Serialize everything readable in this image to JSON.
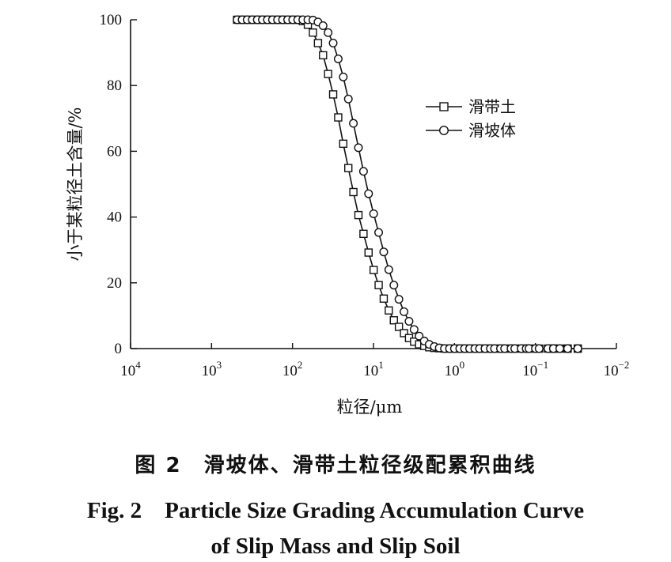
{
  "chart_data": {
    "type": "line",
    "x_scale": "log",
    "x_reversed": true,
    "xlabel": "粒径/μm",
    "ylabel": "小于某粒径土含量/%",
    "xlim": [
      10000,
      0.01
    ],
    "ylim": [
      0,
      100
    ],
    "x_ticks": [
      10000,
      1000,
      100,
      10,
      1,
      0.1,
      0.01
    ],
    "x_tick_labels": [
      {
        "base": "10",
        "exp": "4"
      },
      {
        "base": "10",
        "exp": "3"
      },
      {
        "base": "10",
        "exp": "2"
      },
      {
        "base": "10",
        "exp": "1"
      },
      {
        "base": "10",
        "exp": "0"
      },
      {
        "base": "10",
        "exp": "−1"
      },
      {
        "base": "10",
        "exp": "−2"
      }
    ],
    "y_ticks": [
      0,
      20,
      40,
      60,
      80,
      100
    ],
    "y_tick_labels": [
      "0",
      "20",
      "40",
      "60",
      "80",
      "100"
    ],
    "grid": false,
    "legend_position": "top-right",
    "series": [
      {
        "name": "滑带土",
        "marker": "square",
        "x": [
          483.73,
          418.94,
          362.83,
          314.24,
          272.14,
          235.69,
          204.12,
          176.78,
          153.1,
          132.59,
          114.83,
          99.45,
          86.13,
          74.59,
          64.6,
          55.95,
          48.45,
          41.96,
          36.34,
          31.48,
          27.26,
          23.61,
          20.45,
          17.71,
          15.34,
          13.28,
          11.5,
          9.96,
          8.63,
          7.47,
          6.47,
          5.6,
          4.85,
          4.2,
          3.64,
          3.15,
          2.73,
          2.36,
          2.05,
          1.77,
          1.54,
          1.33,
          1.15,
          1.0,
          0.86,
          0.75,
          0.65,
          0.56,
          0.49,
          0.42,
          0.36,
          0.32,
          0.27,
          0.24,
          0.2,
          0.18,
          0.15,
          0.13,
          0.12,
          0.1,
          0.09,
          0.07,
          0.06,
          0.06,
          0.05,
          0.04,
          0.04,
          0.03,
          0.03
        ],
        "y": [
          100.0,
          100.0,
          100.0,
          100.0,
          100.0,
          100.0,
          100.0,
          100.0,
          100.0,
          100.0,
          100.0,
          100.0,
          100.0,
          99.6,
          98.5,
          96.1,
          92.9,
          89.2,
          83.5,
          77.3,
          70.3,
          62.3,
          54.9,
          47.6,
          40.6,
          34.9,
          29.2,
          23.9,
          19.3,
          15.2,
          11.6,
          8.6,
          6.6,
          4.7,
          3.2,
          2.1,
          1.3,
          0.8,
          0.4,
          0.2,
          0.1,
          0.0,
          0.0,
          0.0,
          0.0,
          0.0,
          0.0,
          0.0,
          0.0,
          0.0,
          0.0,
          0.0,
          0.0,
          0.0,
          0.0,
          0.0,
          0.0,
          0.0,
          0.0,
          0.0,
          0.0,
          0.0,
          0.0,
          0.0,
          0.0,
          0.0,
          0.0,
          0.0,
          0.0
        ]
      },
      {
        "name": "滑坡体",
        "marker": "circle",
        "x": [
          483.73,
          418.94,
          362.83,
          314.24,
          272.14,
          235.69,
          204.12,
          176.78,
          153.1,
          132.59,
          114.83,
          99.45,
          86.13,
          74.59,
          64.6,
          55.95,
          48.45,
          41.96,
          36.34,
          31.48,
          27.26,
          23.61,
          20.45,
          17.71,
          15.34,
          13.28,
          11.5,
          9.96,
          8.63,
          7.47,
          6.47,
          5.6,
          4.85,
          4.2,
          3.64,
          3.15,
          2.73,
          2.36,
          2.05,
          1.77,
          1.54,
          1.33,
          1.15,
          1.0,
          0.86,
          0.75,
          0.65,
          0.56,
          0.49,
          0.42,
          0.36,
          0.32,
          0.27,
          0.24,
          0.2,
          0.18,
          0.15,
          0.13,
          0.12,
          0.1,
          0.09,
          0.07,
          0.06,
          0.06,
          0.05,
          0.04,
          0.04,
          0.03,
          0.03
        ],
        "y": [
          100.0,
          100.0,
          100.0,
          100.0,
          100.0,
          100.0,
          100.0,
          100.0,
          100.0,
          100.0,
          100.0,
          100.0,
          100.0,
          100.0,
          100.0,
          99.9,
          99.3,
          98.2,
          96.1,
          92.9,
          88.1,
          82.6,
          75.9,
          68.5,
          61.1,
          53.9,
          47.1,
          41.0,
          35.3,
          29.4,
          24.0,
          19.3,
          15.0,
          11.2,
          8.3,
          5.8,
          3.8,
          2.3,
          1.3,
          0.6,
          0.2,
          0.0,
          0.0,
          0.0,
          0.0,
          0.0,
          0.0,
          0.0,
          0.0,
          0.0,
          0.0,
          0.0,
          0.0,
          0.0,
          0.0,
          0.0,
          0.0,
          0.0,
          0.0,
          0.0,
          0.0,
          0.0,
          0.0,
          0.0,
          0.0,
          0.0,
          0.0,
          0.0,
          0.0
        ]
      }
    ]
  },
  "caption": {
    "zh": "图 2　滑坡体、滑带土粒径级配累积曲线",
    "en_line1": "Fig. 2　Particle Size Grading Accumulation Curve",
    "en_line2": "of Slip Mass and Slip Soil"
  }
}
